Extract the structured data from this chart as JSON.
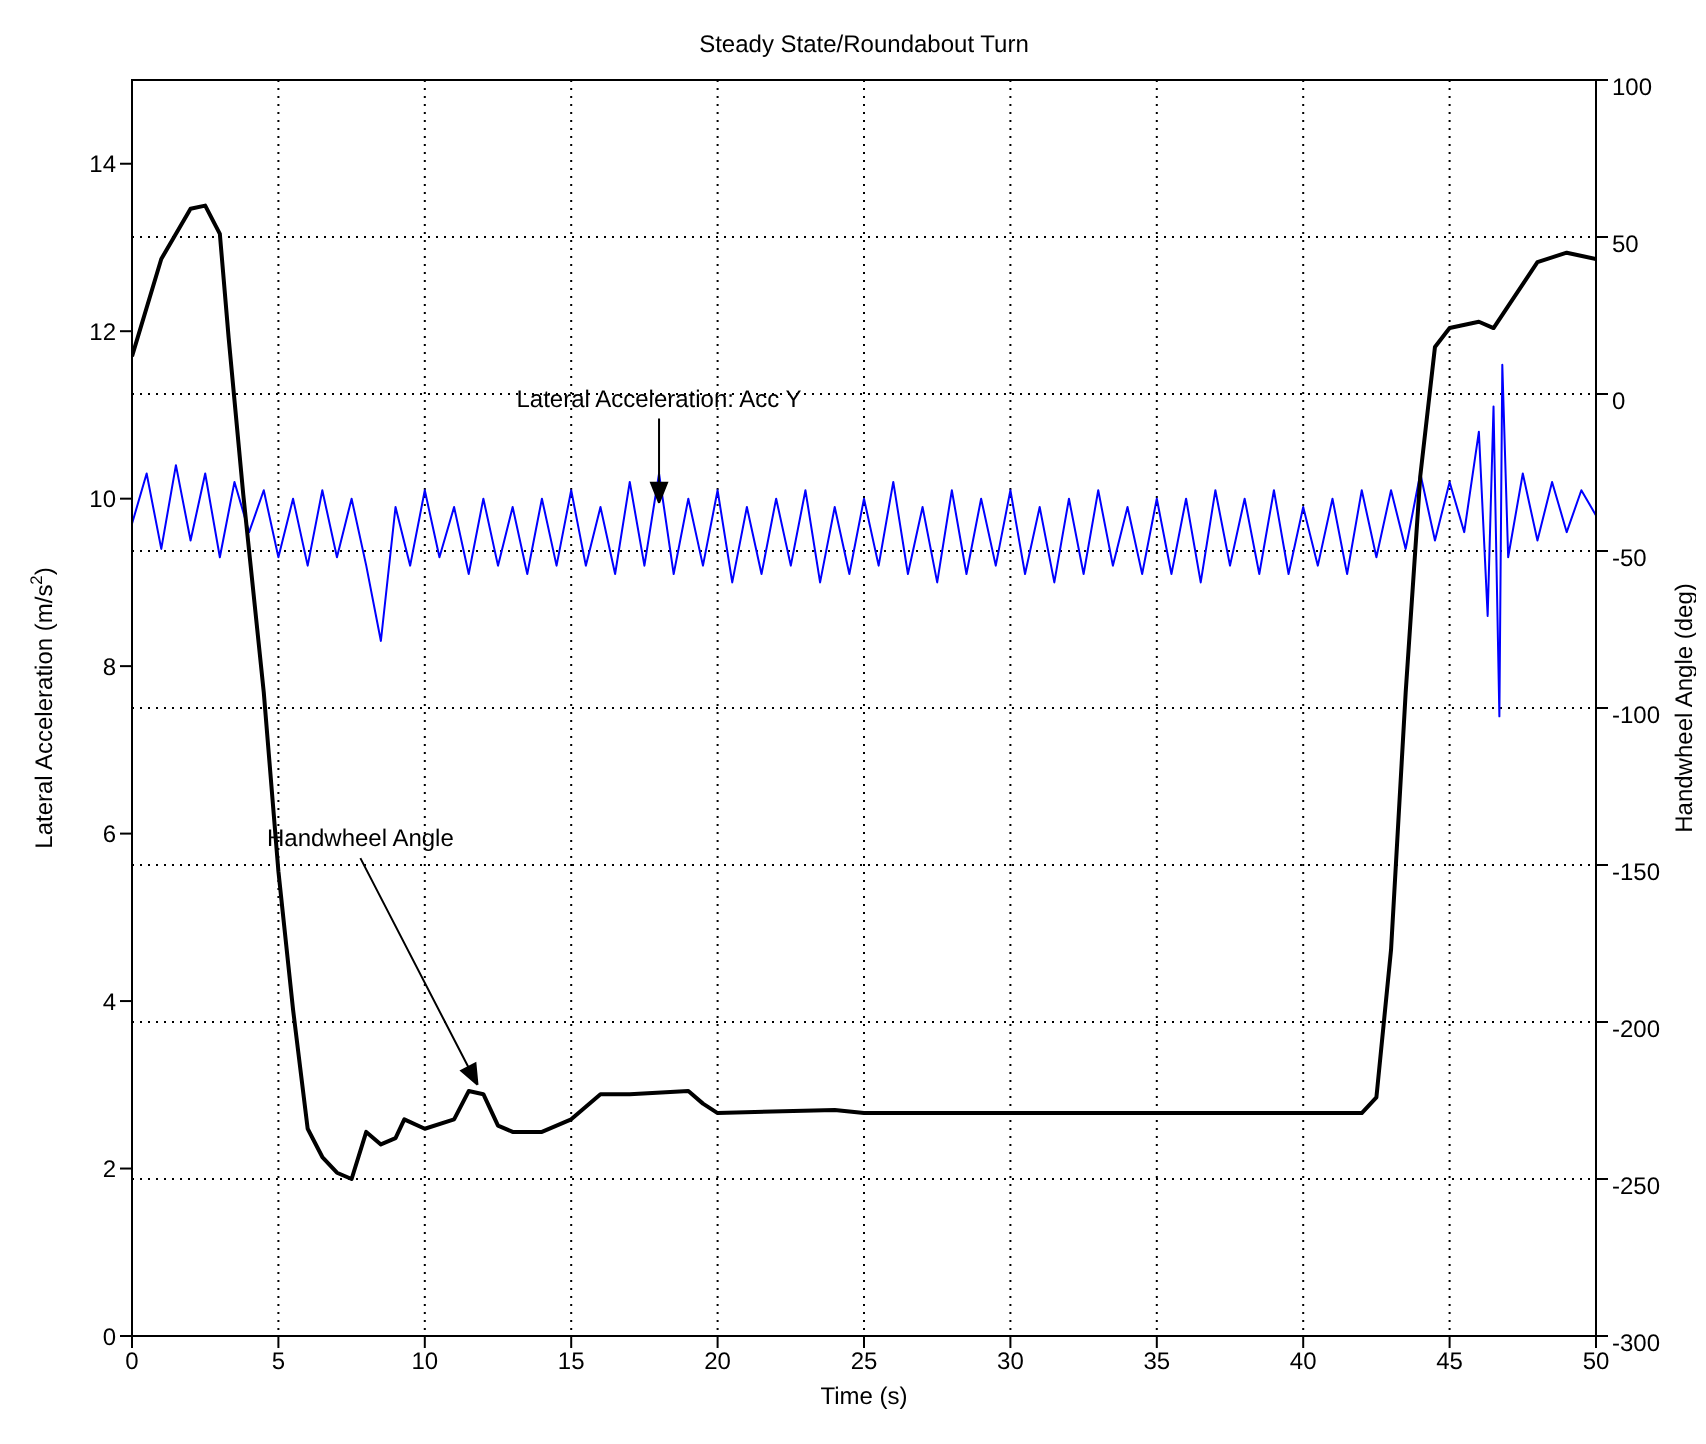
{
  "chart_data": {
    "type": "line",
    "title": "Steady State/Roundabout Turn",
    "xlabel": "Time (s)",
    "ylabel": "Lateral Acceleration (m/s$^{2}$)",
    "y2label": "Handwheel Angle (deg)",
    "annotations": [
      {
        "text": "Lateral Acceleration: Acc Y",
        "x": 18,
        "y": 9.95
      },
      {
        "text": "Handwheel Angle",
        "x": 11.8,
        "y": 3.0
      }
    ],
    "xlim": [
      0,
      50
    ],
    "xticks": [
      0,
      5,
      10,
      15,
      20,
      25,
      30,
      35,
      40,
      45,
      50
    ],
    "ylim": [
      0,
      15
    ],
    "yticks": [
      0,
      2,
      4,
      6,
      8,
      10,
      12,
      14
    ],
    "y2lim": [
      -300,
      100
    ],
    "y2ticks": [
      -300,
      -250,
      -200,
      -150,
      -100,
      -50,
      0,
      50,
      100
    ],
    "grid": true,
    "marker": "none",
    "line_style": "solid",
    "series": [
      {
        "color": "#0000ff",
        "x": [
          0,
          0.5,
          1,
          1.5,
          2,
          2.5,
          3,
          3.5,
          4,
          4.5,
          5,
          5.5,
          6,
          6.5,
          7,
          7.5,
          8,
          8.5,
          9,
          9.5,
          10,
          10.5,
          11,
          11.5,
          12,
          12.5,
          13,
          13.5,
          14,
          14.5,
          15,
          15.5,
          16,
          16.5,
          17,
          17.5,
          18,
          18.5,
          19,
          19.5,
          20,
          20.5,
          21,
          21.5,
          22,
          22.5,
          23,
          23.5,
          24,
          24.5,
          25,
          25.5,
          26,
          26.5,
          27,
          27.5,
          28,
          28.5,
          29,
          29.5,
          30,
          30.5,
          31,
          31.5,
          32,
          32.5,
          33,
          33.5,
          34,
          34.5,
          35,
          35.5,
          36,
          36.5,
          37,
          37.5,
          38,
          38.5,
          39,
          39.5,
          40,
          40.5,
          41,
          41.5,
          42,
          42.5,
          43,
          43.5,
          44,
          44.5,
          45,
          45.5,
          46,
          46.3,
          46.5,
          46.7,
          46.8,
          47,
          47.5,
          48,
          48.5,
          49,
          49.5,
          50
        ],
        "values": [
          9.7,
          10.3,
          9.4,
          10.4,
          9.5,
          10.3,
          9.3,
          10.2,
          9.6,
          10.1,
          9.3,
          10.0,
          9.2,
          10.1,
          9.3,
          10.0,
          9.2,
          8.3,
          9.9,
          9.2,
          10.1,
          9.3,
          9.9,
          9.1,
          10.0,
          9.2,
          9.9,
          9.1,
          10.0,
          9.2,
          10.1,
          9.2,
          9.9,
          9.1,
          10.2,
          9.2,
          10.3,
          9.1,
          10.0,
          9.2,
          10.1,
          9.0,
          9.9,
          9.1,
          10.0,
          9.2,
          10.1,
          9.0,
          9.9,
          9.1,
          10.0,
          9.2,
          10.2,
          9.1,
          9.9,
          9.0,
          10.1,
          9.1,
          10.0,
          9.2,
          10.1,
          9.1,
          9.9,
          9.0,
          10.0,
          9.1,
          10.1,
          9.2,
          9.9,
          9.1,
          10.0,
          9.1,
          10.0,
          9.0,
          10.1,
          9.2,
          10.0,
          9.1,
          10.1,
          9.1,
          9.9,
          9.2,
          10.0,
          9.1,
          10.1,
          9.3,
          10.1,
          9.4,
          10.3,
          9.5,
          10.2,
          9.6,
          10.8,
          8.6,
          11.1,
          7.4,
          11.6,
          9.3,
          10.3,
          9.5,
          10.2,
          9.6,
          10.1,
          9.8
        ]
      },
      {
        "color": "#000000",
        "axis": "y2",
        "x": [
          0,
          1,
          2,
          2.5,
          3,
          3.3,
          3.8,
          4.5,
          5,
          5.5,
          6,
          6.5,
          7,
          7.5,
          8,
          8.5,
          9,
          9.3,
          10,
          11,
          11.5,
          12,
          12.5,
          13,
          14,
          15,
          16,
          17,
          19,
          19.5,
          20,
          24,
          25,
          30,
          35,
          40,
          42,
          42.5,
          43,
          43.5,
          44,
          44.5,
          45,
          46,
          46.5,
          47,
          48,
          49,
          50
        ],
        "values": [
          12,
          43,
          59,
          60,
          51,
          18,
          -32,
          -95,
          -152,
          -196,
          -234,
          -243,
          -248,
          -250,
          -235,
          -239,
          -237,
          -231,
          -234,
          -231,
          -222,
          -223,
          -233,
          -235,
          -235,
          -231,
          -223,
          -223,
          -222,
          -226,
          -229,
          -228,
          -229,
          -229,
          -229,
          -229,
          -229,
          -224,
          -177,
          -95,
          -26,
          15,
          21,
          23,
          21,
          28,
          42,
          45,
          43
        ]
      }
    ]
  }
}
